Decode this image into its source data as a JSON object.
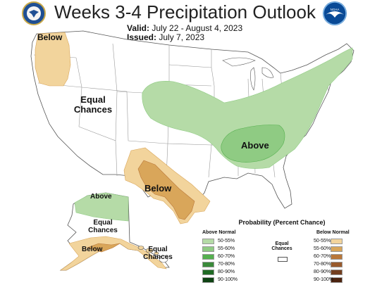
{
  "header": {
    "title": "Weeks 3-4 Precipitation Outlook",
    "valid_label": "Valid:",
    "valid_value": "July 22 - August 4, 2023",
    "issued_label": "Issued:",
    "issued_value": "July 7, 2023"
  },
  "regions": {
    "northwest": "Below",
    "west": "Equal Chances",
    "east": "Above",
    "south": "Below",
    "alaska_north": "Above",
    "alaska_mid": "Equal Chances",
    "alaska_south": "Below",
    "hawaii": "Equal Chances"
  },
  "legend": {
    "title": "Probability (Percent Chance)",
    "above_heading": "Above Normal",
    "below_heading": "Below Normal",
    "equal_label": "Equal Chances",
    "above": [
      {
        "label": "50-55%",
        "color": "#b5dba7"
      },
      {
        "label": "55-60%",
        "color": "#8fcb83"
      },
      {
        "label": "60-70%",
        "color": "#55b04f"
      },
      {
        "label": "70-80%",
        "color": "#3a8a3a"
      },
      {
        "label": "80-90%",
        "color": "#1f6a24"
      },
      {
        "label": "90-100%",
        "color": "#0f4314"
      }
    ],
    "below": [
      {
        "label": "50-55%",
        "color": "#f2d49c"
      },
      {
        "label": "55-60%",
        "color": "#d9a65a"
      },
      {
        "label": "60-70%",
        "color": "#b9773a"
      },
      {
        "label": "70-80%",
        "color": "#995a2c"
      },
      {
        "label": "80-90%",
        "color": "#733e1e"
      },
      {
        "label": "90-100%",
        "color": "#4d2410"
      }
    ]
  },
  "colors": {
    "above_light": "#b5dba7",
    "above_mid": "#8fcb83",
    "below_light": "#f2d49c",
    "below_mid": "#d9a65a",
    "border": "#9a9a9a",
    "coast": "#555555"
  }
}
